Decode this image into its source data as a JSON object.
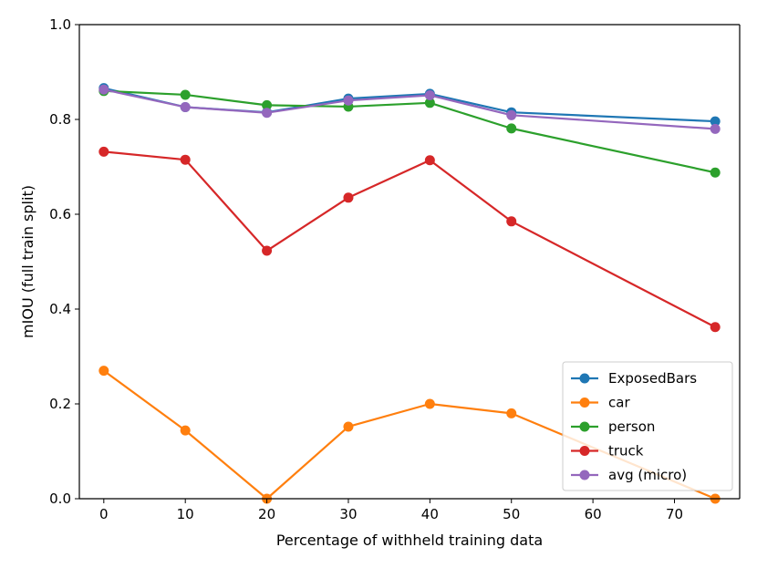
{
  "chart_data": {
    "type": "line",
    "title": "",
    "xlabel": "Percentage of withheld training data",
    "ylabel": "mIOU (full train split)",
    "x": [
      0,
      10,
      20,
      30,
      40,
      50,
      75
    ],
    "xlim": [
      -3,
      78
    ],
    "ylim": [
      0.0,
      1.0
    ],
    "xticks": [
      0,
      10,
      20,
      30,
      40,
      50,
      60,
      70
    ],
    "yticks": [
      0.0,
      0.2,
      0.4,
      0.6,
      0.8,
      1.0
    ],
    "xtick_labels": [
      "0",
      "10",
      "20",
      "30",
      "40",
      "50",
      "60",
      "70"
    ],
    "ytick_labels": [
      "0.0",
      "0.2",
      "0.4",
      "0.6",
      "0.8",
      "1.0"
    ],
    "grid": false,
    "legend_position": "lower-right",
    "series": [
      {
        "name": "ExposedBars",
        "color": "#1f77b4",
        "values": [
          0.866,
          0.826,
          0.815,
          0.844,
          0.854,
          0.815,
          0.796
        ]
      },
      {
        "name": "car",
        "color": "#ff7f0e",
        "values": [
          0.27,
          0.144,
          0.0,
          0.152,
          0.2,
          0.18,
          0.0
        ]
      },
      {
        "name": "person",
        "color": "#2ca02c",
        "values": [
          0.86,
          0.852,
          0.83,
          0.827,
          0.835,
          0.781,
          0.688
        ]
      },
      {
        "name": "truck",
        "color": "#d62728",
        "values": [
          0.732,
          0.715,
          0.523,
          0.635,
          0.714,
          0.585,
          0.362
        ]
      },
      {
        "name": "avg (micro)",
        "color": "#9467bd",
        "values": [
          0.863,
          0.826,
          0.814,
          0.84,
          0.851,
          0.809,
          0.78
        ]
      }
    ]
  }
}
